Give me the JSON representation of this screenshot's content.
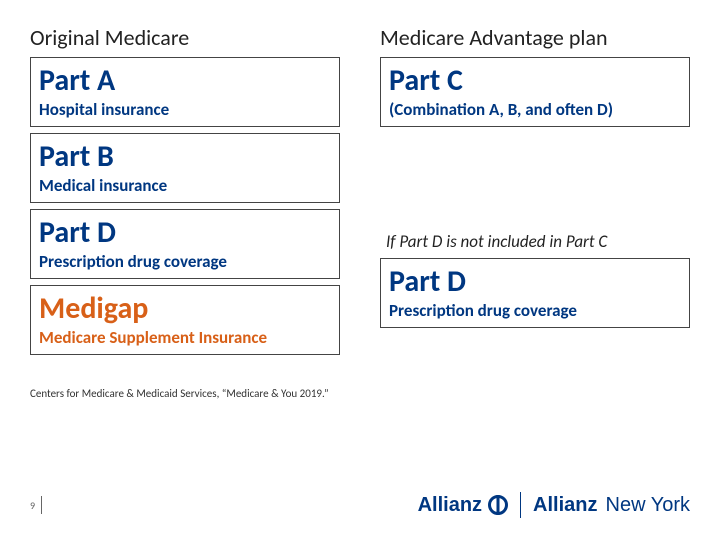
{
  "colors": {
    "allianz_blue": "#003781",
    "medigap_orange": "#d86018"
  },
  "left": {
    "header": "Original Medicare",
    "blocks": [
      {
        "title": "Part A",
        "sub": "Hospital insurance",
        "color_key": "allianz_blue"
      },
      {
        "title": "Part B",
        "sub": "Medical insurance",
        "color_key": "allianz_blue"
      },
      {
        "title": "Part D",
        "sub": "Prescription drug coverage",
        "color_key": "allianz_blue"
      },
      {
        "title": "Medigap",
        "sub": "Medicare Supplement Insurance",
        "color_key": "medigap_orange"
      }
    ]
  },
  "right": {
    "header": "Medicare Advantage plan",
    "blocks": [
      {
        "title": "Part C",
        "sub": "(Combination A, B, and often D)",
        "color_key": "allianz_blue"
      }
    ],
    "note": "If Part D is not included in Part C",
    "post_note_block": {
      "title": "Part D",
      "sub": "Prescription drug coverage",
      "color_key": "allianz_blue"
    }
  },
  "source": "Centers for Medicare & Medicaid Services, “Medicare & You 2019.”",
  "footer": {
    "page_number": "9",
    "brand_word": "Allianz",
    "brand_suffix": "New York"
  }
}
